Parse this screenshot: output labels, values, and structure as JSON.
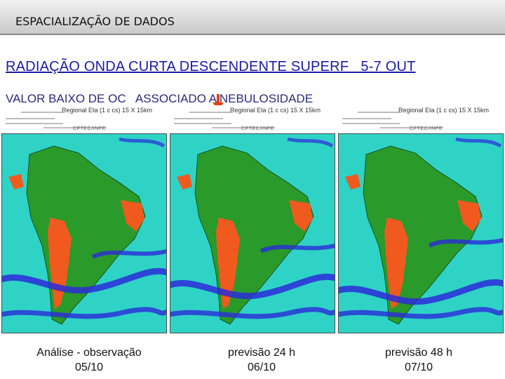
{
  "header": {
    "title": "ESPACIALIZAÇÃO DE DADOS"
  },
  "main_title": "RADIAÇÃO ONDA CURTA DESCENDENTE SUPERF   5-7 OUT",
  "subtitle": "VALOR BAIXO DE OC   ASSOCIADO A NEBULOSIDADE",
  "colors": {
    "title": "#1a1aa6",
    "ocean": "#2fd3c6",
    "land_green": "#2a9a2a",
    "hot": "#f05a1e",
    "band": "#2b2bd8",
    "arrow": "#e84010"
  },
  "panels": [
    {
      "map_title": "Regional Eta (1 c cs) 15 X 15km",
      "logo": "CPTEC/INPE",
      "caption_line1": "Análise - observação",
      "caption_line2": "05/10"
    },
    {
      "map_title": "Regional Eta (1 c cs) 15 X 15km",
      "logo": "CPTEC/INPE",
      "caption_line1": "previsão 24 h",
      "caption_line2": "06/10"
    },
    {
      "map_title": "Regional Eta (1 c cs) 15 X 15km",
      "logo": "CPTEC/INPE",
      "caption_line1": "previsão 48 h",
      "caption_line2": "07/10"
    }
  ]
}
